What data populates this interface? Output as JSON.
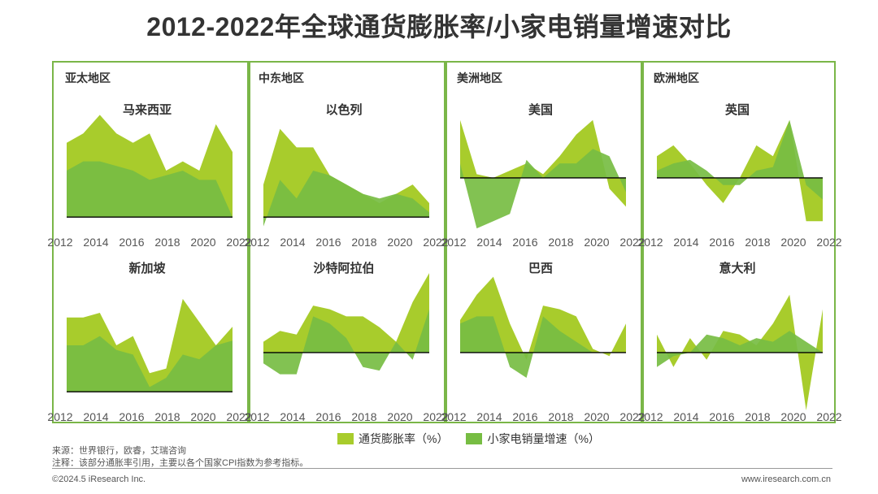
{
  "title": "2012-2022年全球通货膨胀率/小家电销量增速对比",
  "colors": {
    "inflation": "#a8cc2c",
    "sales": "#77bd43",
    "border": "#7ab648",
    "baseline": "#000000"
  },
  "legend": {
    "inflation": "通货膨胀率（%）",
    "sales": "小家电销量增速（%）"
  },
  "notes": {
    "source": "来源：世界银行，欧睿，艾瑞咨询",
    "remark": "注释：该部分通胀率引用，主要以各个国家CPI指数为参考指标。"
  },
  "footer": {
    "left": "©2024.5 iResearch Inc.",
    "right": "www.iresearch.com.cn"
  },
  "regions": [
    "亚太地区",
    "中东地区",
    "美洲地区",
    "欧洲地区"
  ],
  "chart_data": [
    {
      "type": "area",
      "region": "亚太地区",
      "title": "马来西亚",
      "x_ticks": [
        "2012",
        "2014",
        "2016",
        "2018",
        "2020",
        "2022"
      ],
      "x": [
        2012,
        2013,
        2014,
        2015,
        2016,
        2017,
        2018,
        2019,
        2020,
        2021,
        2022
      ],
      "ylim": [
        -2,
        12
      ],
      "series": [
        {
          "name": "通货膨胀率（%）",
          "values": [
            8,
            9,
            11,
            9,
            8,
            9,
            5,
            6,
            5,
            10,
            7
          ]
        },
        {
          "name": "小家电销量增速（%）",
          "values": [
            5,
            6,
            6,
            5.5,
            5,
            4,
            4.5,
            5,
            4,
            4,
            0
          ]
        }
      ]
    },
    {
      "type": "area",
      "region": "中东地区",
      "title": "以色列",
      "x_ticks": [
        "2012",
        "2014",
        "2016",
        "2018",
        "2020",
        "2022"
      ],
      "x": [
        2012,
        2013,
        2014,
        2015,
        2016,
        2017,
        2018,
        2019,
        2020,
        2021,
        2022
      ],
      "ylim": [
        -2,
        12
      ],
      "series": [
        {
          "name": "通货膨胀率（%）",
          "values": [
            3.5,
            9.5,
            7.5,
            7.5,
            4.5,
            3.5,
            2.5,
            1.5,
            2.5,
            3.5,
            1.5
          ]
        },
        {
          "name": "小家电销量增速（%）",
          "values": [
            -1,
            4,
            2,
            5,
            4.5,
            3.5,
            2.5,
            2,
            2.5,
            2,
            0.5
          ]
        }
      ]
    },
    {
      "type": "area",
      "region": "美洲地区",
      "title": "美国",
      "x_ticks": [
        "2012",
        "2014",
        "2016",
        "2018",
        "2020",
        "2022"
      ],
      "x": [
        2012,
        2013,
        2014,
        2015,
        2016,
        2017,
        2018,
        2019,
        2020,
        2021,
        2022
      ],
      "ylim": [
        -8,
        10
      ],
      "series": [
        {
          "name": "通货膨胀率（%）",
          "values": [
            8,
            0.5,
            0,
            1,
            2,
            0.5,
            3,
            6,
            8,
            -1.5,
            -4
          ]
        },
        {
          "name": "小家电销量增速（%）",
          "values": [
            2,
            -7,
            -6,
            -5,
            2.5,
            0,
            2,
            2,
            4,
            3,
            -2
          ]
        }
      ]
    },
    {
      "type": "area",
      "region": "欧洲地区",
      "title": "英国",
      "x_ticks": [
        "2012",
        "2014",
        "2016",
        "2018",
        "2020",
        "2022"
      ],
      "x": [
        2012,
        2013,
        2014,
        2015,
        2016,
        2017,
        2018,
        2019,
        2020,
        2021,
        2022
      ],
      "ylim": [
        -8,
        10
      ],
      "series": [
        {
          "name": "通货膨胀率（%）",
          "values": [
            3,
            4.5,
            2,
            -1,
            -3.5,
            0,
            4.5,
            3,
            8,
            -6,
            -6
          ]
        },
        {
          "name": "小家电销量增速（%）",
          "values": [
            1,
            2,
            2.5,
            1,
            -1,
            -1,
            1,
            1.5,
            8,
            -1,
            -3
          ]
        }
      ]
    },
    {
      "type": "area",
      "region": "亚太地区",
      "title": "新加坡",
      "x_ticks": [
        "2012",
        "2014",
        "2016",
        "2018",
        "2020",
        "2022"
      ],
      "x": [
        2012,
        2013,
        2014,
        2015,
        2016,
        2017,
        2018,
        2019,
        2020,
        2021,
        2022
      ],
      "ylim": [
        -2,
        12
      ],
      "series": [
        {
          "name": "通货膨胀率（%）",
          "values": [
            8,
            8,
            8.5,
            5,
            6,
            2,
            2.5,
            10,
            7.5,
            5,
            7
          ]
        },
        {
          "name": "小家电销量增速（%）",
          "values": [
            5,
            5,
            6,
            4.5,
            4,
            0.5,
            1.5,
            4,
            3.5,
            5,
            5.5
          ]
        }
      ]
    },
    {
      "type": "area",
      "region": "中东地区",
      "title": "沙特阿拉伯",
      "x_ticks": [
        "2012",
        "2014",
        "2016",
        "2018",
        "2020",
        "2022"
      ],
      "x": [
        2012,
        2013,
        2014,
        2015,
        2016,
        2017,
        2018,
        2019,
        2020,
        2021,
        2022
      ],
      "ylim": [
        -8,
        10
      ],
      "series": [
        {
          "name": "通货膨胀率（%）",
          "values": [
            1.5,
            3,
            2.5,
            6.5,
            6,
            5,
            5,
            3.5,
            1.5,
            7,
            11
          ]
        },
        {
          "name": "小家电销量增速（%）",
          "values": [
            -1.5,
            -3,
            -3,
            5,
            4,
            2,
            -2,
            -2.5,
            1.5,
            -1,
            6
          ]
        }
      ]
    },
    {
      "type": "area",
      "region": "美洲地区",
      "title": "巴西",
      "x_ticks": [
        "2012",
        "2014",
        "2016",
        "2018",
        "2020",
        "2022"
      ],
      "x": [
        2012,
        2013,
        2014,
        2015,
        2016,
        2017,
        2018,
        2019,
        2020,
        2021,
        2022
      ],
      "ylim": [
        -8,
        10
      ],
      "series": [
        {
          "name": "通货膨胀率（%）",
          "values": [
            4.5,
            8,
            10.5,
            4,
            -1,
            6.5,
            6,
            5,
            0.5,
            -0.5,
            4
          ]
        },
        {
          "name": "小家电销量增速（%）",
          "values": [
            4,
            5,
            5,
            -2,
            -3.5,
            5,
            3,
            1.5,
            0,
            0,
            0
          ]
        }
      ]
    },
    {
      "type": "area",
      "region": "欧洲地区",
      "title": "意大利",
      "x_ticks": [
        "2012",
        "2014",
        "2016",
        "2018",
        "2020",
        "2022"
      ],
      "x": [
        2012,
        2013,
        2014,
        2015,
        2016,
        2017,
        2018,
        2019,
        2020,
        2021,
        2022
      ],
      "ylim": [
        -8,
        10
      ],
      "series": [
        {
          "name": "通货膨胀率（%）",
          "values": [
            2.5,
            -2,
            2,
            -1,
            3,
            2.5,
            1,
            4,
            8,
            -8,
            6
          ]
        },
        {
          "name": "小家电销量增速（%）",
          "values": [
            -2,
            -0.5,
            0,
            2.5,
            2,
            1,
            2,
            1.5,
            3,
            1.5,
            0
          ]
        }
      ]
    }
  ]
}
